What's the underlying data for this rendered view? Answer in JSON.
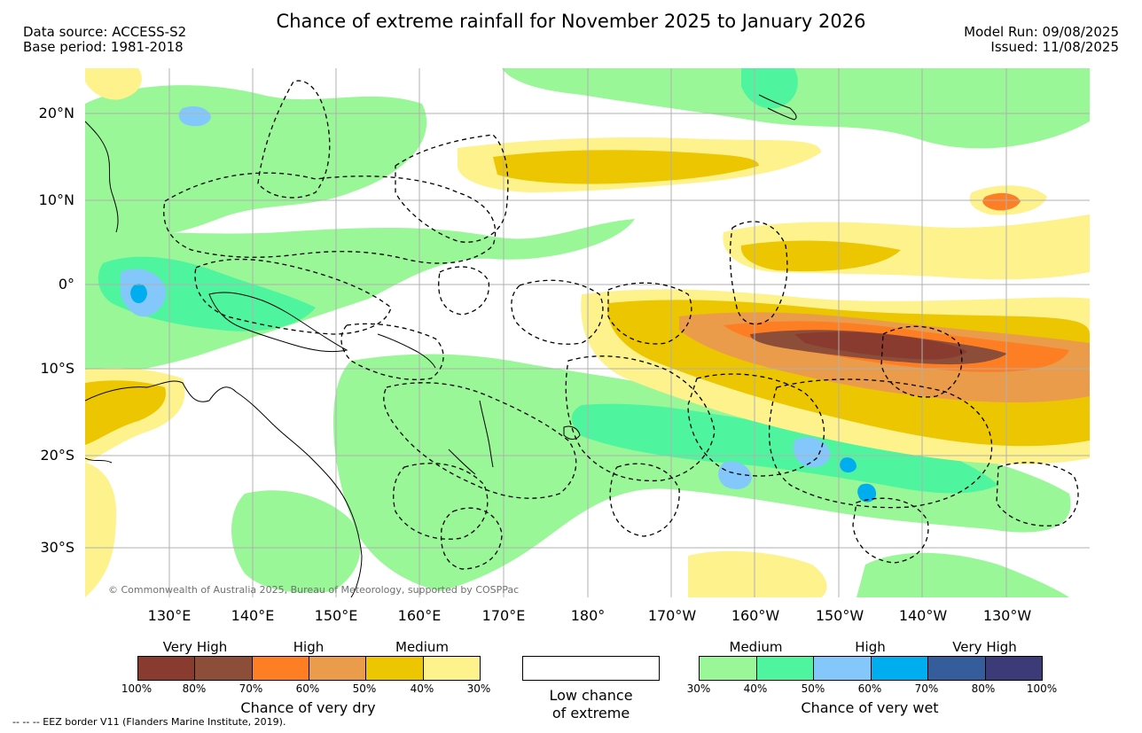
{
  "header": {
    "title": "Chance of extreme rainfall for November 2025 to January 2026",
    "data_source": "Data source: ACCESS-S2",
    "base_period": "Base period: 1981-2018",
    "model_run": "Model Run: 09/08/2025",
    "issued": "Issued: 11/08/2025"
  },
  "map": {
    "lat_labels": [
      "20°N",
      "10°N",
      "0°",
      "10°S",
      "20°S",
      "30°S"
    ],
    "lon_labels": [
      "130°E",
      "140°E",
      "150°E",
      "160°E",
      "170°E",
      "180°",
      "170°W",
      "160°W",
      "150°W",
      "140°W",
      "130°W"
    ],
    "copyright": "© Commonwealth of Australia 2025, Bureau of Meteorology, supported by COSPPac",
    "colors": {
      "ocean": "#ffffff",
      "grid": "#b0b0b0",
      "wet_30": "#99f797",
      "wet_40": "#4ff59e",
      "wet_50": "#84c8fb",
      "wet_60": "#00aeef",
      "dry_30": "#fdf28c",
      "dry_40": "#ecc600",
      "dry_50": "#ea9c4a",
      "dry_60": "#fd7e23",
      "dry_70": "#8c4d39",
      "dry_80": "#8a3b30"
    }
  },
  "legend": {
    "dry": {
      "categories": [
        "Very High",
        "High",
        "Medium"
      ],
      "ticks": [
        "100%",
        "80%",
        "70%",
        "60%",
        "50%",
        "40%",
        "30%"
      ],
      "colors": [
        "#8a3b30",
        "#8c4d39",
        "#fd7e23",
        "#ea9c4a",
        "#ecc600",
        "#fdf28c"
      ],
      "label": "Chance of very dry"
    },
    "low": {
      "line1": "Low chance",
      "line2": "of extreme",
      "color": "#ffffff"
    },
    "wet": {
      "categories": [
        "Medium",
        "High",
        "Very High"
      ],
      "ticks": [
        "30%",
        "40%",
        "50%",
        "60%",
        "70%",
        "80%",
        "100%"
      ],
      "colors": [
        "#99f797",
        "#4ff59e",
        "#84c8fb",
        "#00aeef",
        "#355d9c",
        "#3d3a78"
      ],
      "label": "Chance of very wet"
    }
  },
  "footnote": "-- -- -- EEZ border V11 (Flanders Marine Institute, 2019)."
}
